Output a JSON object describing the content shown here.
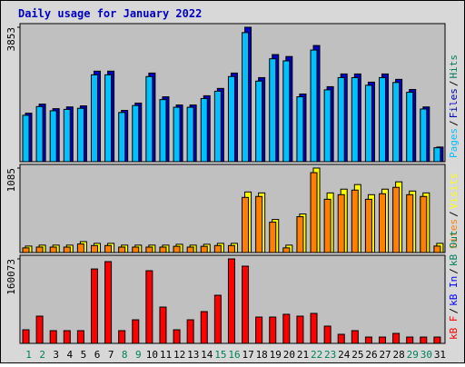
{
  "chart_data": {
    "type": "webalizer-daily",
    "title": "Daily usage for January 2022",
    "separator": "/",
    "categories": [
      "1",
      "2",
      "3",
      "4",
      "5",
      "6",
      "7",
      "8",
      "9",
      "10",
      "11",
      "12",
      "13",
      "14",
      "15",
      "16",
      "17",
      "18",
      "19",
      "20",
      "21",
      "22",
      "23",
      "24",
      "25",
      "26",
      "27",
      "28",
      "29",
      "30",
      "31"
    ],
    "category_colors": [
      "#00805c",
      "#00805c",
      "#000000",
      "#000000",
      "#000000",
      "#000000",
      "#000000",
      "#00805c",
      "#00805c",
      "#000000",
      "#000000",
      "#000000",
      "#000000",
      "#000000",
      "#00805c",
      "#00805c",
      "#000000",
      "#000000",
      "#000000",
      "#000000",
      "#000000",
      "#00805c",
      "#00805c",
      "#000000",
      "#000000",
      "#000000",
      "#000000",
      "#000000",
      "#00805c",
      "#00805c",
      "#000000"
    ],
    "panels": [
      {
        "ylim": [
          0,
          3853
        ],
        "yticks": [
          3853
        ],
        "series": [
          {
            "name": "Pages",
            "color": "#00c0ff",
            "values": [
              1330,
              1580,
              1460,
              1500,
              1530,
              2490,
              2490,
              1410,
              1610,
              2440,
              1780,
              1560,
              1560,
              1810,
              2020,
              2440,
              3700,
              2310,
              2950,
              2890,
              1860,
              3200,
              2060,
              2410,
              2410,
              2190,
              2410,
              2270,
              1990,
              1510,
              400
            ]
          },
          {
            "name": "Files",
            "color": "#0000c0",
            "values": [
              1390,
              1650,
              1520,
              1570,
              1600,
              2595,
              2595,
              1470,
              1680,
              2540,
              1860,
              1625,
              1625,
              1890,
              2100,
              2540,
              3853,
              2410,
              3070,
              3015,
              1940,
              3330,
              2150,
              2515,
              2515,
              2280,
              2515,
              2360,
              2070,
              1570,
              420
            ]
          },
          {
            "name": "Hits",
            "color": "#00805c"
          }
        ]
      },
      {
        "ylim": [
          0,
          1085
        ],
        "yticks": [
          1085
        ],
        "series": [
          {
            "name": "Sites",
            "color": "#ff8000",
            "values": [
              60,
              70,
              70,
              70,
              110,
              90,
              90,
              70,
              70,
              70,
              70,
              80,
              70,
              80,
              90,
              90,
              708,
              720,
              390,
              60,
              460,
              1026,
              684,
              743,
              802,
              684,
              755,
              837,
              743,
              720,
              83
            ]
          },
          {
            "name": "Visits",
            "color": "#ffff00",
            "values": [
              83,
              95,
              95,
              95,
              140,
              118,
              118,
              95,
              95,
              95,
              95,
              106,
              95,
              106,
              118,
              118,
              778,
              766,
              425,
              95,
              495,
              1085,
              766,
              814,
              873,
              743,
              814,
              908,
              790,
              766,
              118
            ]
          }
        ]
      },
      {
        "ylim": [
          0,
          160073
        ],
        "yticks": [
          160073
        ],
        "series": [
          {
            "name": "kB F",
            "color": "#ff0000",
            "values": [
              25800,
              51600,
              24100,
              24100,
              24100,
              141000,
              154900,
              24100,
              44700,
              137700,
              68800,
              25800,
              44700,
              60200,
              91200,
              160073,
              146300,
              49900,
              49900,
              55100,
              51600,
              56800,
              32700,
              17200,
              24100,
              12000,
              12000,
              18900,
              12000,
              12000,
              12000
            ]
          },
          {
            "name": "kB In",
            "color": "#0000ff"
          },
          {
            "name": "kB Out",
            "color": "#00805c"
          }
        ]
      }
    ]
  }
}
